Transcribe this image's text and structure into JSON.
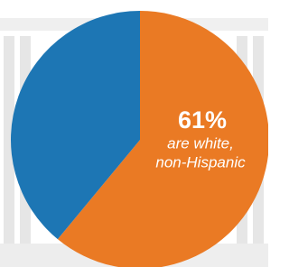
{
  "chart_data": {
    "type": "pie",
    "values": [
      61,
      39
    ],
    "value_labels": [
      "61%",
      null
    ],
    "colors": [
      "#ea7a24",
      "#1d76b4"
    ],
    "start_angle": 0,
    "direction": "clockwise",
    "annotation": [
      "are white,",
      "non-Hispanic"
    ]
  }
}
